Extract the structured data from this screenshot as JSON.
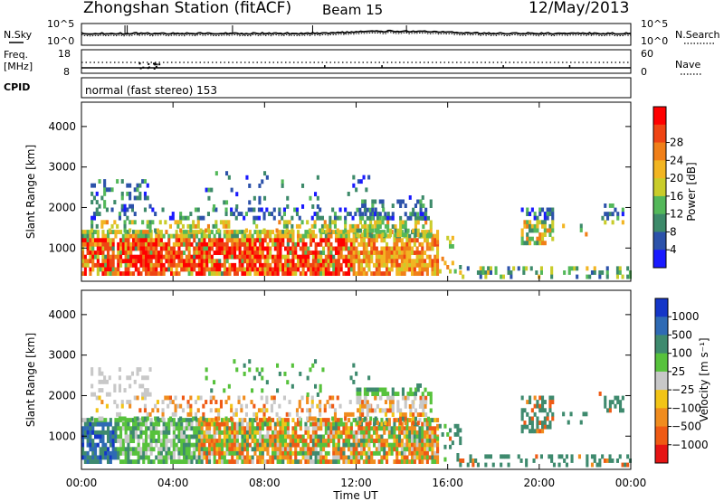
{
  "header": {
    "title": "Zhongshan Station (fitACF)",
    "beam": "Beam 15",
    "date": "12/May/2013"
  },
  "chart_data": [
    {
      "type": "line",
      "name": "noise-panel",
      "left_label": "N.Sky",
      "right_label": "N.Search",
      "left_ticks": [
        "10^5",
        "10^0"
      ],
      "right_ticks": [
        "10^5",
        "10^0"
      ]
    },
    {
      "type": "line",
      "name": "frequency-panel",
      "left_label_top": "Freq.",
      "left_label_unit": "[MHz]",
      "right_label": "Nave",
      "left_ticks": [
        "18",
        "8"
      ],
      "right_ticks": [
        "60",
        "0"
      ]
    },
    {
      "type": "table",
      "name": "cpid-panel",
      "label": "CPID",
      "mode_text": "normal (fast stereo) 153"
    },
    {
      "type": "heatmap",
      "name": "power-panel",
      "ylabel": "Slant Range [km]",
      "ylim": [
        180,
        4600
      ],
      "y_ticks": [
        "1000",
        "2000",
        "3000",
        "4000"
      ],
      "colorbar_label": "Power [dB]",
      "colorbar_ticks": [
        "4",
        "8",
        "12",
        "16",
        "20",
        "24",
        "28"
      ],
      "colorbar_colors": [
        "#1a1aff",
        "#2c52aa",
        "#3d8a6a",
        "#54b85a",
        "#c9cc2a",
        "#f2b522",
        "#f07f18",
        "#ef4413",
        "#ff0000"
      ]
    },
    {
      "type": "heatmap",
      "name": "velocity-panel",
      "ylabel": "Slant Range [km]",
      "ylim": [
        180,
        4600
      ],
      "y_ticks": [
        "1000",
        "2000",
        "3000",
        "4000"
      ],
      "colorbar_label": "Velocity [m s⁻¹]",
      "colorbar_ticks": [
        "1000",
        "500",
        "100",
        "25",
        "−25",
        "−100",
        "−500",
        "−1000"
      ],
      "colorbar_colors": [
        "#1436c8",
        "#2e6ab4",
        "#3e8a6e",
        "#57c23c",
        "#c8c8c8",
        "#f2c417",
        "#f08c1e",
        "#ef5a14",
        "#e61414"
      ]
    }
  ],
  "time_axis": {
    "xlabel": "Time UT",
    "ticks": [
      "00:00",
      "04:00",
      "08:00",
      "12:00",
      "16:00",
      "20:00",
      "00:00"
    ],
    "hours": [
      0,
      4,
      8,
      12,
      16,
      20,
      24
    ]
  }
}
